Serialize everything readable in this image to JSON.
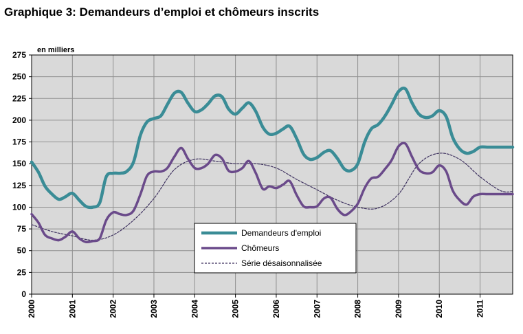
{
  "title": "Graphique 3: Demandeurs d’emploi et chômeurs inscrits",
  "chart_data": {
    "type": "line",
    "title": "Graphique 3: Demandeurs d’emploi et chômeurs inscrits",
    "ylabel": "en milliers",
    "xlabel": "",
    "ylim": [
      0,
      275
    ],
    "yticks": [
      0,
      25,
      50,
      75,
      100,
      125,
      150,
      175,
      200,
      225,
      250,
      275
    ],
    "xlim": [
      2000,
      2011.8
    ],
    "xticks": [
      "2000",
      "2001",
      "2002",
      "2003",
      "2004",
      "2005",
      "2006",
      "2007",
      "2008",
      "2009",
      "2010",
      "2011"
    ],
    "grid": true,
    "legend_position": "bottom-center",
    "series": [
      {
        "name": "Demandeurs d'emploi",
        "color": "#3a8c96",
        "style": "solid-thick",
        "x": [
          2000.0,
          2000.17,
          2000.33,
          2000.5,
          2000.67,
          2000.83,
          2001.0,
          2001.17,
          2001.33,
          2001.5,
          2001.67,
          2001.83,
          2002.0,
          2002.17,
          2002.33,
          2002.5,
          2002.67,
          2002.83,
          2003.0,
          2003.17,
          2003.33,
          2003.5,
          2003.67,
          2003.83,
          2004.0,
          2004.17,
          2004.33,
          2004.5,
          2004.67,
          2004.83,
          2005.0,
          2005.17,
          2005.33,
          2005.5,
          2005.67,
          2005.83,
          2006.0,
          2006.17,
          2006.33,
          2006.5,
          2006.67,
          2006.83,
          2007.0,
          2007.17,
          2007.33,
          2007.5,
          2007.67,
          2007.83,
          2008.0,
          2008.17,
          2008.33,
          2008.5,
          2008.67,
          2008.83,
          2009.0,
          2009.17,
          2009.33,
          2009.5,
          2009.67,
          2009.83,
          2010.0,
          2010.17,
          2010.33,
          2010.5,
          2010.67,
          2010.83,
          2011.0,
          2011.17,
          2011.33,
          2011.5,
          2011.67,
          2011.8
        ],
        "values": [
          152,
          140,
          124,
          115,
          109,
          112,
          116,
          108,
          101,
          100,
          105,
          135,
          139,
          139,
          141,
          152,
          183,
          198,
          202,
          205,
          218,
          231,
          232,
          220,
          210,
          212,
          219,
          228,
          227,
          213,
          207,
          214,
          220,
          210,
          192,
          184,
          185,
          190,
          193,
          179,
          161,
          155,
          157,
          163,
          165,
          156,
          144,
          142,
          150,
          175,
          190,
          195,
          205,
          218,
          233,
          236,
          220,
          207,
          203,
          205,
          211,
          204,
          180,
          167,
          162,
          164,
          169,
          169,
          169,
          169,
          169,
          169
        ]
      },
      {
        "name": "Chômeurs",
        "color": "#6a4a8a",
        "style": "solid",
        "x": [
          2000.0,
          2000.17,
          2000.33,
          2000.5,
          2000.67,
          2000.83,
          2001.0,
          2001.17,
          2001.33,
          2001.5,
          2001.67,
          2001.83,
          2002.0,
          2002.17,
          2002.33,
          2002.5,
          2002.67,
          2002.83,
          2003.0,
          2003.17,
          2003.33,
          2003.5,
          2003.67,
          2003.83,
          2004.0,
          2004.17,
          2004.33,
          2004.5,
          2004.67,
          2004.83,
          2005.0,
          2005.17,
          2005.33,
          2005.5,
          2005.67,
          2005.83,
          2006.0,
          2006.17,
          2006.33,
          2006.5,
          2006.67,
          2006.83,
          2007.0,
          2007.17,
          2007.33,
          2007.5,
          2007.67,
          2007.83,
          2008.0,
          2008.17,
          2008.33,
          2008.5,
          2008.67,
          2008.83,
          2009.0,
          2009.17,
          2009.33,
          2009.5,
          2009.67,
          2009.83,
          2010.0,
          2010.17,
          2010.33,
          2010.5,
          2010.67,
          2010.83,
          2011.0,
          2011.17,
          2011.33,
          2011.5,
          2011.67,
          2011.8
        ],
        "values": [
          92,
          82,
          68,
          64,
          62,
          66,
          72,
          64,
          60,
          61,
          64,
          85,
          94,
          92,
          91,
          96,
          115,
          136,
          141,
          141,
          145,
          158,
          168,
          156,
          145,
          145,
          150,
          160,
          156,
          142,
          141,
          145,
          153,
          139,
          121,
          124,
          122,
          126,
          130,
          114,
          101,
          100,
          101,
          110,
          111,
          98,
          91,
          95,
          104,
          122,
          133,
          135,
          144,
          154,
          170,
          173,
          158,
          143,
          139,
          140,
          148,
          141,
          119,
          108,
          103,
          112,
          115,
          115,
          115,
          115,
          115,
          115
        ]
      },
      {
        "name": "Série désaisonnalisée",
        "color": "#3c2f5e",
        "style": "dashed",
        "x": [
          2000.0,
          2000.5,
          2001.0,
          2001.5,
          2002.0,
          2002.5,
          2003.0,
          2003.5,
          2004.0,
          2004.5,
          2005.0,
          2005.5,
          2006.0,
          2006.5,
          2007.0,
          2007.5,
          2008.0,
          2008.5,
          2009.0,
          2009.5,
          2010.0,
          2010.5,
          2011.0,
          2011.5,
          2011.8
        ],
        "values": [
          80,
          72,
          67,
          62,
          68,
          85,
          110,
          143,
          155,
          153,
          150,
          150,
          145,
          132,
          120,
          108,
          100,
          99,
          115,
          150,
          162,
          155,
          135,
          119,
          118
        ]
      }
    ]
  }
}
